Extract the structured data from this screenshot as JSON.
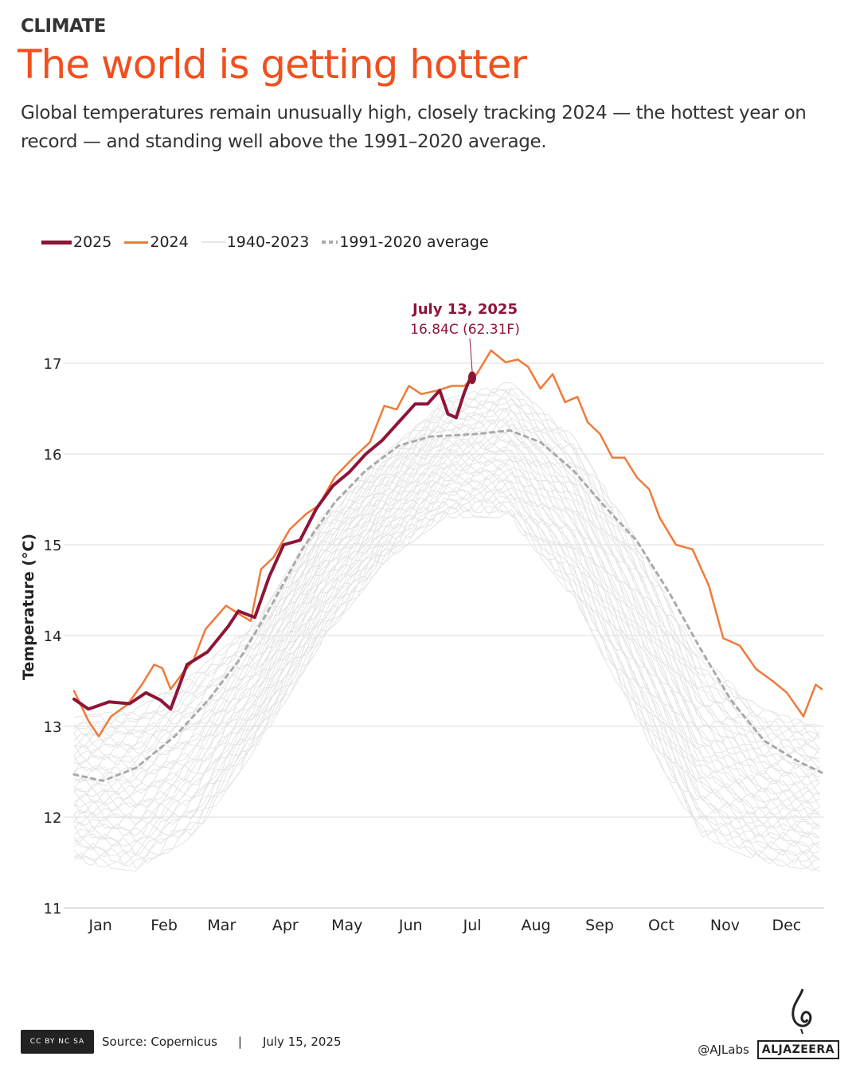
{
  "header": {
    "kicker": "CLIMATE",
    "title": "The world is getting hotter",
    "subtitle": "Global temperatures remain unusually high, closely tracking 2024 — the hottest year on record — and standing well above the 1991–2020 average."
  },
  "footer": {
    "source": "Source: Copernicus",
    "separator": "|",
    "date": "July 15, 2025",
    "handle": "@AJLabs",
    "brand": "ALJAZEERA",
    "license": "CC BY NC SA"
  },
  "chart_data": {
    "type": "line",
    "ylabel": "Temperature (°C)",
    "ylim": [
      11,
      17.2
    ],
    "yticks": [
      "11",
      "12",
      "13",
      "14",
      "15",
      "16",
      "17"
    ],
    "xticks": [
      "Jan",
      "Feb",
      "Mar",
      "Apr",
      "May",
      "Jun",
      "Jul",
      "Aug",
      "Sep",
      "Oct",
      "Nov",
      "Dec"
    ],
    "grid": true,
    "legend_position": "top-left",
    "colors": {
      "2025": "#8e1537",
      "2024": "#f07a3a",
      "1940-2023": "#e2e2e2",
      "average": "#aaaaaa",
      "title": "#f0501e"
    },
    "legend": [
      {
        "label": "2025"
      },
      {
        "label": "2024"
      },
      {
        "label": "1940-2023"
      },
      {
        "label": "1991-2020 average"
      }
    ],
    "annotation": {
      "date": "July 13, 2025",
      "value": "16.84C (62.31F)"
    },
    "series": [
      {
        "name": "2025",
        "points": [
          [
            "01-01",
            13.3
          ],
          [
            "01-08",
            13.19
          ],
          [
            "01-18",
            13.27
          ],
          [
            "01-28",
            13.25
          ],
          [
            "02-05",
            13.37
          ],
          [
            "02-12",
            13.29
          ],
          [
            "02-17",
            13.19
          ],
          [
            "02-25",
            13.68
          ],
          [
            "03-07",
            13.82
          ],
          [
            "03-17",
            14.1
          ],
          [
            "03-22",
            14.27
          ],
          [
            "03-30",
            14.2
          ],
          [
            "04-06",
            14.65
          ],
          [
            "04-13",
            15.0
          ],
          [
            "04-21",
            15.05
          ],
          [
            "04-29",
            15.4
          ],
          [
            "05-07",
            15.65
          ],
          [
            "05-15",
            15.8
          ],
          [
            "05-23",
            16.0
          ],
          [
            "05-31",
            16.15
          ],
          [
            "06-08",
            16.35
          ],
          [
            "06-16",
            16.55
          ],
          [
            "06-22",
            16.55
          ],
          [
            "06-28",
            16.7
          ],
          [
            "07-02",
            16.44
          ],
          [
            "07-06",
            16.4
          ],
          [
            "07-10",
            16.68
          ],
          [
            "07-13",
            16.84
          ]
        ]
      },
      {
        "name": "2024",
        "points": [
          [
            "01-01",
            13.39
          ],
          [
            "01-08",
            13.06
          ],
          [
            "01-13",
            12.89
          ],
          [
            "01-19",
            13.11
          ],
          [
            "01-27",
            13.24
          ],
          [
            "02-03",
            13.46
          ],
          [
            "02-09",
            13.68
          ],
          [
            "02-13",
            13.64
          ],
          [
            "02-17",
            13.41
          ],
          [
            "02-23",
            13.59
          ],
          [
            "02-28",
            13.72
          ],
          [
            "03-06",
            14.07
          ],
          [
            "03-16",
            14.33
          ],
          [
            "03-22",
            14.24
          ],
          [
            "03-28",
            14.16
          ],
          [
            "04-02",
            14.73
          ],
          [
            "04-08",
            14.86
          ],
          [
            "04-16",
            15.17
          ],
          [
            "04-24",
            15.34
          ],
          [
            "04-30",
            15.43
          ],
          [
            "05-08",
            15.75
          ],
          [
            "05-17",
            15.96
          ],
          [
            "05-25",
            16.13
          ],
          [
            "06-01",
            16.53
          ],
          [
            "06-07",
            16.49
          ],
          [
            "06-13",
            16.75
          ],
          [
            "06-19",
            16.66
          ],
          [
            "06-27",
            16.7
          ],
          [
            "07-04",
            16.75
          ],
          [
            "07-10",
            16.75
          ],
          [
            "07-16",
            16.88
          ],
          [
            "07-23",
            17.14
          ],
          [
            "07-30",
            17.01
          ],
          [
            "08-05",
            17.04
          ],
          [
            "08-10",
            16.96
          ],
          [
            "08-16",
            16.72
          ],
          [
            "08-22",
            16.88
          ],
          [
            "08-28",
            16.57
          ],
          [
            "09-03",
            16.63
          ],
          [
            "09-08",
            16.35
          ],
          [
            "09-14",
            16.22
          ],
          [
            "09-20",
            15.96
          ],
          [
            "09-26",
            15.96
          ],
          [
            "10-02",
            15.74
          ],
          [
            "10-08",
            15.61
          ],
          [
            "10-13",
            15.3
          ],
          [
            "10-21",
            15.0
          ],
          [
            "10-29",
            14.95
          ],
          [
            "11-06",
            14.55
          ],
          [
            "11-13",
            13.97
          ],
          [
            "11-21",
            13.89
          ],
          [
            "11-29",
            13.63
          ],
          [
            "12-07",
            13.5
          ],
          [
            "12-14",
            13.37
          ],
          [
            "12-22",
            13.11
          ],
          [
            "12-28",
            13.46
          ],
          [
            "12-31",
            13.41
          ]
        ]
      },
      {
        "name": "1991-2020 average",
        "points": [
          [
            "01-01",
            12.47
          ],
          [
            "01-15",
            12.4
          ],
          [
            "01-31",
            12.54
          ],
          [
            "02-19",
            12.89
          ],
          [
            "03-07",
            13.28
          ],
          [
            "03-22",
            13.72
          ],
          [
            "04-07",
            14.33
          ],
          [
            "04-22",
            14.95
          ],
          [
            "05-08",
            15.47
          ],
          [
            "05-23",
            15.82
          ],
          [
            "06-08",
            16.09
          ],
          [
            "06-23",
            16.19
          ],
          [
            "07-16",
            16.22
          ],
          [
            "08-01",
            16.26
          ],
          [
            "08-16",
            16.13
          ],
          [
            "09-01",
            15.82
          ],
          [
            "09-16",
            15.43
          ],
          [
            "10-02",
            15.04
          ],
          [
            "10-18",
            14.46
          ],
          [
            "11-02",
            13.85
          ],
          [
            "11-17",
            13.28
          ],
          [
            "12-03",
            12.84
          ],
          [
            "12-19",
            12.62
          ],
          [
            "12-31",
            12.49
          ]
        ]
      }
    ],
    "range_1940_2023": [
      [
        "01-01",
        11.5,
        13.1
      ],
      [
        "02-01",
        11.4,
        13.2
      ],
      [
        "03-01",
        11.8,
        13.6
      ],
      [
        "04-01",
        12.8,
        14.2
      ],
      [
        "05-01",
        13.9,
        15.3
      ],
      [
        "06-01",
        14.8,
        16.0
      ],
      [
        "07-01",
        15.3,
        16.6
      ],
      [
        "08-01",
        15.3,
        16.8
      ],
      [
        "09-01",
        14.4,
        16.2
      ],
      [
        "10-01",
        13.1,
        15.1
      ],
      [
        "11-01",
        11.8,
        13.8
      ],
      [
        "12-01",
        11.5,
        13.2
      ],
      [
        "12-31",
        11.4,
        13.0
      ]
    ]
  }
}
